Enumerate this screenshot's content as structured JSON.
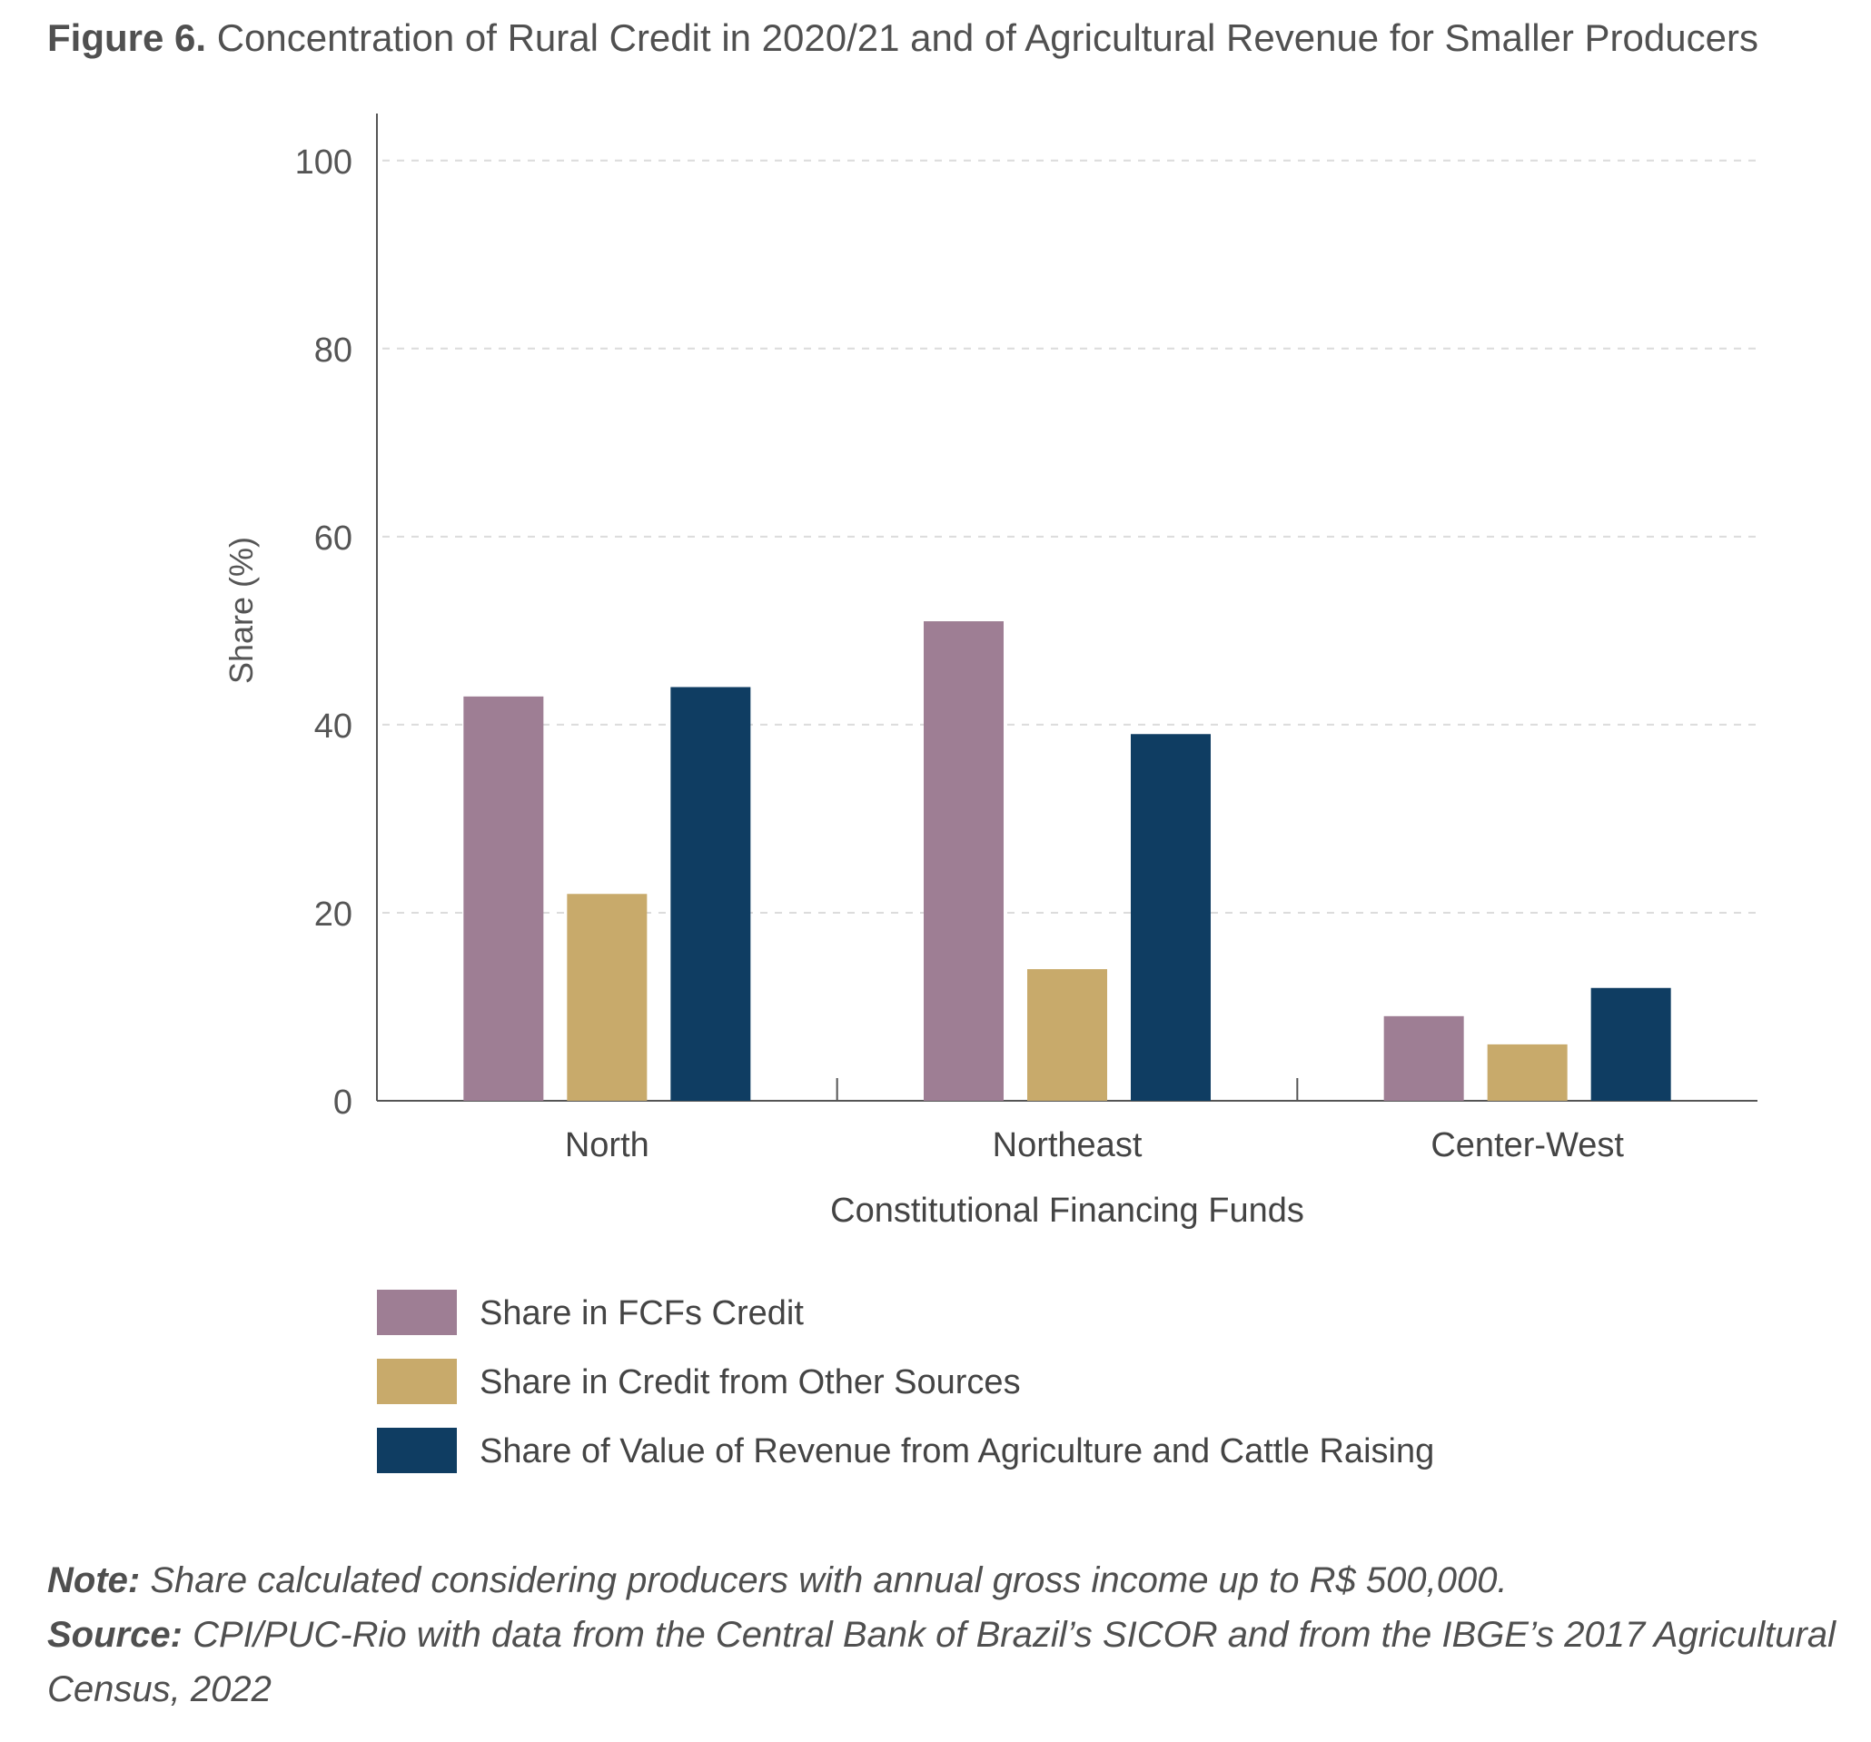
{
  "figure": {
    "number": "Figure 6.",
    "title": "Concentration of Rural Credit in 2020/21 and of Agricultural Revenue for Smaller Producers"
  },
  "chart_data": {
    "type": "bar",
    "xlabel": "Constitutional Financing Funds",
    "ylabel": "Share (%)",
    "ylim": [
      0,
      105
    ],
    "yticks": [
      0,
      20,
      40,
      60,
      80,
      100
    ],
    "grid": true,
    "legend_position": "bottom",
    "categories": [
      "North",
      "Northeast",
      "Center-West"
    ],
    "series": [
      {
        "name": "Share in FCFs Credit",
        "color": "#9e7e94",
        "values": [
          43,
          51,
          9
        ]
      },
      {
        "name": "Share in Credit from Other Sources",
        "color": "#c8aa6b",
        "values": [
          22,
          14,
          6
        ]
      },
      {
        "name": "Share of Value of Revenue from Agriculture and Cattle Raising",
        "color": "#0f3d62",
        "values": [
          44,
          39,
          12
        ]
      }
    ]
  },
  "notes": {
    "note_label": "Note:",
    "note_text": "Share calculated considering producers with annual gross income up to R$ 500,000.",
    "source_label": "Source:",
    "source_text": "CPI/PUC-Rio with data from the Central Bank of Brazil’s SICOR and from the IBGE’s 2017 Agricultural Census, 2022"
  }
}
